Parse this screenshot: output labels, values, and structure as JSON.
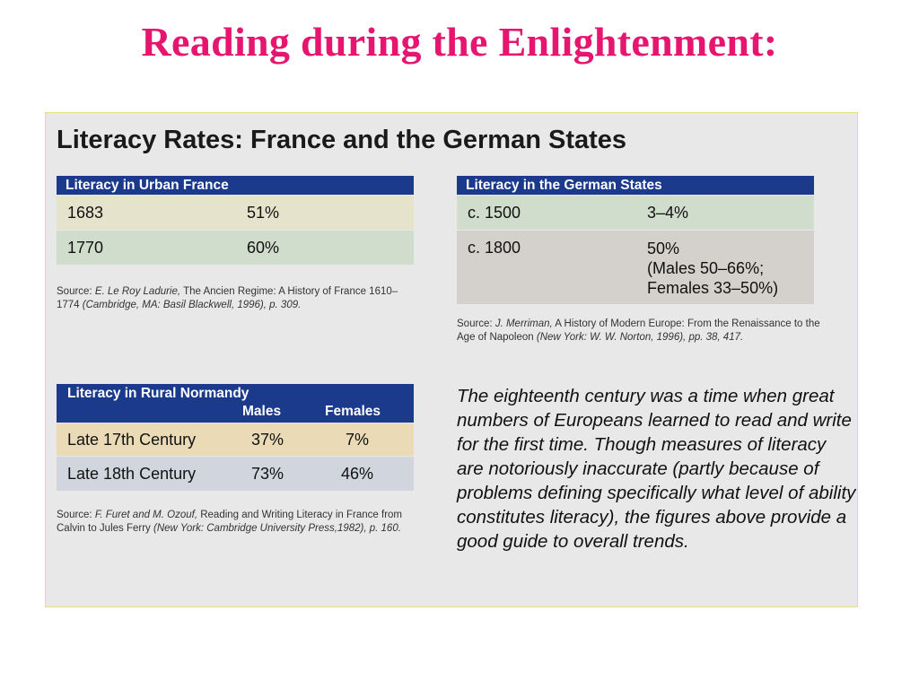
{
  "slide": {
    "title": "Reading during the Enlightenment:"
  },
  "panel": {
    "title": "Literacy Rates: France and the German States",
    "urban_france": {
      "header": "Literacy in Urban France",
      "rows": [
        {
          "year": "1683",
          "rate": "51%"
        },
        {
          "year": "1770",
          "rate": "60%"
        }
      ],
      "source": {
        "prefix": "Source: ",
        "author": "E. Le Roy Ladurie,",
        "work": " The Ancien Regime: A History of France 1610–1774 ",
        "details": "(Cambridge, MA: Basil Blackwell, 1996), p. 309."
      }
    },
    "german_states": {
      "header": "Literacy in the German States",
      "rows": [
        {
          "year": "c. 1500",
          "rate": "3–4%"
        },
        {
          "year": "c. 1800",
          "rate": "50%",
          "rate_line2": "(Males 50–66%;",
          "rate_line3": "Females 33–50%)"
        }
      ],
      "source": {
        "prefix": "Source: ",
        "author": "J. Merriman,",
        "work": " A History of Modern Europe: From the Renaissance to the Age of Napoleon ",
        "details": "(New York: W. W. Norton, 1996), pp. 38, 417."
      }
    },
    "rural_normandy": {
      "header": "Literacy in Rural Normandy",
      "col_males": "Males",
      "col_females": "Females",
      "rows": [
        {
          "label": "Late 17th Century",
          "males": "37%",
          "females": "7%"
        },
        {
          "label": "Late 18th Century",
          "males": "73%",
          "females": "46%"
        }
      ],
      "source": {
        "prefix": "Source: ",
        "author": "F. Furet and M. Ozouf,",
        "work": " Reading and Writing Literacy in France from Calvin to Jules Ferry ",
        "details": "(New York: Cambridge University Press,1982), p. 160."
      }
    },
    "narrative": "The eighteenth century was a time when great numbers of Europeans learned to read and write for the first time. Though measures of literacy are notoriously inaccurate (partly because of problems defining specifically what level of ability constitutes literacy), the figures above provide a good guide to overall trends."
  }
}
